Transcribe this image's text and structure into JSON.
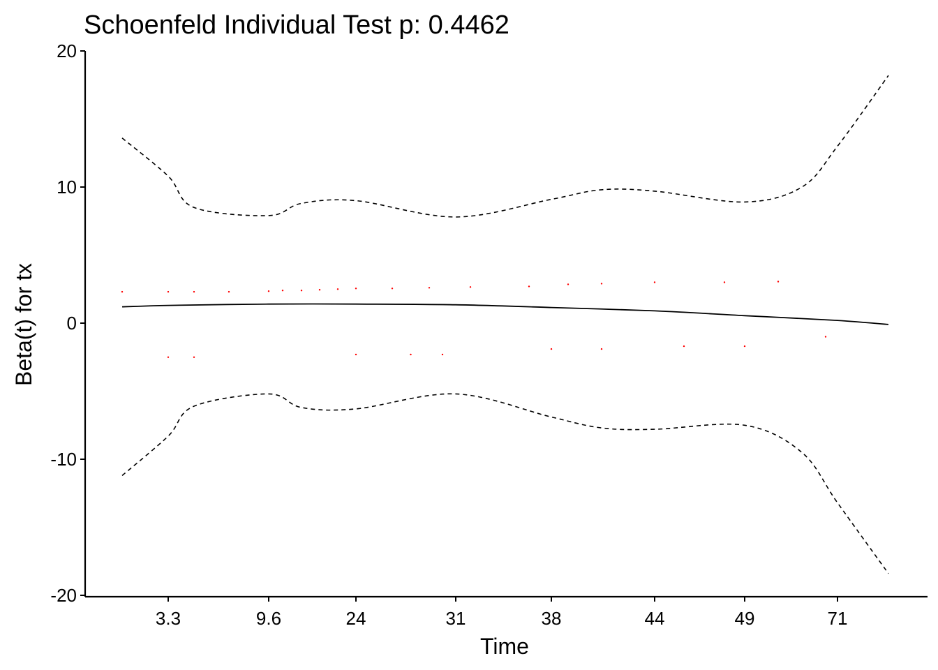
{
  "chart_data": {
    "type": "line",
    "title": "Schoenfeld Individual Test p: 0.4462",
    "xlabel": "Time",
    "ylabel": "Beta(t) for tx",
    "ylim": [
      -20,
      20
    ],
    "yticks": [
      -20,
      -10,
      0,
      10,
      20
    ],
    "xticks": [
      "3.3",
      "9.6",
      "24",
      "31",
      "38",
      "44",
      "49",
      "71"
    ],
    "grid": false,
    "colors": {
      "line": "#000000",
      "points": "#ff0000",
      "axis": "#000000"
    },
    "series": [
      {
        "style": "solid",
        "values": [
          {
            "x": "1.0",
            "y": 1.2
          },
          {
            "x": "3.3",
            "y": 1.3
          },
          {
            "x": "9.6",
            "y": 1.4
          },
          {
            "x": "24",
            "y": 1.4
          },
          {
            "x": "31",
            "y": 1.35
          },
          {
            "x": "38",
            "y": 1.15
          },
          {
            "x": "44",
            "y": 0.9
          },
          {
            "x": "49",
            "y": 0.55
          },
          {
            "x": "71",
            "y": 0.2
          },
          {
            "x": "85",
            "y": -0.1
          }
        ]
      },
      {
        "style": "dashed",
        "values": [
          {
            "x": "1.0",
            "y": 13.6
          },
          {
            "x": "3.3",
            "y": 10.8
          },
          {
            "x": "5.0",
            "y": 8.5
          },
          {
            "x": "9.6",
            "y": 7.9
          },
          {
            "x": "15",
            "y": 8.8
          },
          {
            "x": "24",
            "y": 9.0
          },
          {
            "x": "31",
            "y": 7.8
          },
          {
            "x": "38",
            "y": 9.1
          },
          {
            "x": "41",
            "y": 9.8
          },
          {
            "x": "44",
            "y": 9.7
          },
          {
            "x": "49",
            "y": 8.9
          },
          {
            "x": "60",
            "y": 10.0
          },
          {
            "x": "71",
            "y": 13.0
          },
          {
            "x": "85",
            "y": 18.2
          }
        ]
      },
      {
        "style": "dashed",
        "values": [
          {
            "x": "1.0",
            "y": -11.2
          },
          {
            "x": "3.3",
            "y": -8.3
          },
          {
            "x": "5.0",
            "y": -6.1
          },
          {
            "x": "9.6",
            "y": -5.2
          },
          {
            "x": "15",
            "y": -6.2
          },
          {
            "x": "24",
            "y": -6.3
          },
          {
            "x": "31",
            "y": -5.2
          },
          {
            "x": "38",
            "y": -6.9
          },
          {
            "x": "41",
            "y": -7.7
          },
          {
            "x": "44",
            "y": -7.8
          },
          {
            "x": "49",
            "y": -7.5
          },
          {
            "x": "60",
            "y": -9.5
          },
          {
            "x": "71",
            "y": -13.2
          },
          {
            "x": "85",
            "y": -18.4
          }
        ]
      }
    ],
    "points": [
      {
        "x": "1.0",
        "y": 2.3
      },
      {
        "x": "3.3",
        "y": 2.3
      },
      {
        "x": "5.0",
        "y": 2.3
      },
      {
        "x": "8.0",
        "y": 2.3
      },
      {
        "x": "9.6",
        "y": 2.35
      },
      {
        "x": "12",
        "y": 2.4
      },
      {
        "x": "15",
        "y": 2.4
      },
      {
        "x": "18",
        "y": 2.45
      },
      {
        "x": "21",
        "y": 2.5
      },
      {
        "x": "24",
        "y": 2.55
      },
      {
        "x": "27",
        "y": 2.55
      },
      {
        "x": "29",
        "y": 2.6
      },
      {
        "x": "32",
        "y": 2.65
      },
      {
        "x": "36",
        "y": 2.7
      },
      {
        "x": "39",
        "y": 2.85
      },
      {
        "x": "41",
        "y": 2.9
      },
      {
        "x": "44",
        "y": 3.0
      },
      {
        "x": "48",
        "y": 3.0
      },
      {
        "x": "55",
        "y": 3.05
      },
      {
        "x": "3.3",
        "y": -2.5
      },
      {
        "x": "5.0",
        "y": -2.5
      },
      {
        "x": "24",
        "y": -2.3
      },
      {
        "x": "28",
        "y": -2.3
      },
      {
        "x": "30",
        "y": -2.3
      },
      {
        "x": "38",
        "y": -1.9
      },
      {
        "x": "41",
        "y": -1.9
      },
      {
        "x": "46",
        "y": -1.7
      },
      {
        "x": "49",
        "y": -1.7
      },
      {
        "x": "65",
        "y": -1.0
      }
    ]
  }
}
